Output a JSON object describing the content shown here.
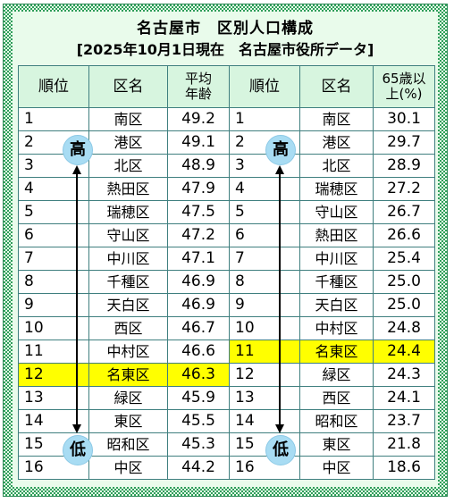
{
  "title": "名古屋市　区別人口構成",
  "subtitle": "[2025年10月1日現在　名古屋市役所データ]",
  "headers": {
    "rank": "順位",
    "ward": "区名",
    "avg_age": "平均\n年齢",
    "elderly": "65歳以\n上(%)"
  },
  "badges": {
    "high": "高",
    "low": "低"
  },
  "highlight_color": "#ffff00",
  "left_rows": [
    {
      "rank": "1",
      "ward": "南区",
      "value": "49.2"
    },
    {
      "rank": "2",
      "ward": "港区",
      "value": "49.1"
    },
    {
      "rank": "3",
      "ward": "北区",
      "value": "48.9"
    },
    {
      "rank": "4",
      "ward": "熱田区",
      "value": "47.9"
    },
    {
      "rank": "5",
      "ward": "瑞穂区",
      "value": "47.5"
    },
    {
      "rank": "6",
      "ward": "守山区",
      "value": "47.2"
    },
    {
      "rank": "7",
      "ward": "中川区",
      "value": "47.1"
    },
    {
      "rank": "8",
      "ward": "千種区",
      "value": "46.9"
    },
    {
      "rank": "9",
      "ward": "天白区",
      "value": "46.9"
    },
    {
      "rank": "10",
      "ward": "西区",
      "value": "46.7"
    },
    {
      "rank": "11",
      "ward": "中村区",
      "value": "46.6"
    },
    {
      "rank": "12",
      "ward": "名東区",
      "value": "46.3"
    },
    {
      "rank": "13",
      "ward": "緑区",
      "value": "45.9"
    },
    {
      "rank": "14",
      "ward": "東区",
      "value": "45.5"
    },
    {
      "rank": "15",
      "ward": "昭和区",
      "value": "45.3"
    },
    {
      "rank": "16",
      "ward": "中区",
      "value": "44.2"
    }
  ],
  "right_rows": [
    {
      "rank": "1",
      "ward": "南区",
      "value": "30.1"
    },
    {
      "rank": "2",
      "ward": "港区",
      "value": "29.7"
    },
    {
      "rank": "3",
      "ward": "北区",
      "value": "28.9"
    },
    {
      "rank": "4",
      "ward": "瑞穂区",
      "value": "27.2"
    },
    {
      "rank": "5",
      "ward": "守山区",
      "value": "26.7"
    },
    {
      "rank": "6",
      "ward": "熱田区",
      "value": "26.6"
    },
    {
      "rank": "7",
      "ward": "中川区",
      "value": "25.4"
    },
    {
      "rank": "8",
      "ward": "千種区",
      "value": "25.0"
    },
    {
      "rank": "9",
      "ward": "天白区",
      "value": "25.0"
    },
    {
      "rank": "10",
      "ward": "中村区",
      "value": "24.8"
    },
    {
      "rank": "11",
      "ward": "名東区",
      "value": "24.4"
    },
    {
      "rank": "12",
      "ward": "緑区",
      "value": "24.3"
    },
    {
      "rank": "13",
      "ward": "西区",
      "value": "24.1"
    },
    {
      "rank": "14",
      "ward": "昭和区",
      "value": "23.7"
    },
    {
      "rank": "15",
      "ward": "東区",
      "value": "21.8"
    },
    {
      "rank": "16",
      "ward": "中区",
      "value": "18.6"
    }
  ],
  "highlighted_ward": "名東区"
}
